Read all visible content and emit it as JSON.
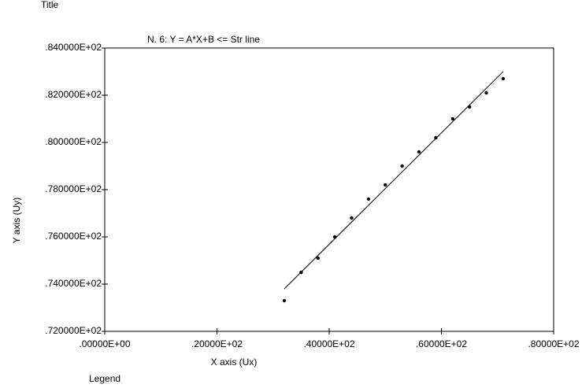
{
  "chart_data": {
    "type": "scatter",
    "title": "Title",
    "subtitle": "N.  6:   Y = A*X+B <= Str  line",
    "x_label": "X axis (Ux)",
    "y_label": "Y axis (Uy)",
    "legend_title": "Legend",
    "x": [
      32,
      35,
      38,
      41,
      44,
      47,
      50,
      53,
      56,
      59,
      62,
      65,
      68,
      71
    ],
    "values": [
      73.3,
      74.5,
      75.1,
      76.0,
      76.8,
      77.6,
      78.2,
      79.0,
      79.6,
      80.2,
      81.0,
      81.5,
      82.1,
      82.7
    ],
    "color": "#000000",
    "fit_line": {
      "x": [
        32,
        71
      ],
      "values": [
        73.8,
        83.0
      ],
      "color": "#000000"
    },
    "xlim": [
      0,
      80
    ],
    "xticks": [
      {
        "value": 0,
        "label": ".00000E+00"
      },
      {
        "value": 20,
        "label": ".20000E+02"
      },
      {
        "value": 40,
        "label": ".40000E+02"
      },
      {
        "value": 60,
        "label": ".60000E+02"
      },
      {
        "value": 80,
        "label": ".80000E+02"
      }
    ],
    "ylim": [
      72,
      84
    ],
    "yticks": [
      {
        "value": 72,
        "label": ".720000E+02"
      },
      {
        "value": 74,
        "label": ".740000E+02"
      },
      {
        "value": 76,
        "label": ".760000E+02"
      },
      {
        "value": 78,
        "label": ".780000E+02"
      },
      {
        "value": 80,
        "label": ".800000E+02"
      },
      {
        "value": 82,
        "label": ".820000E+02"
      },
      {
        "value": 84,
        "label": ".840000E+02"
      }
    ],
    "grid": false
  }
}
